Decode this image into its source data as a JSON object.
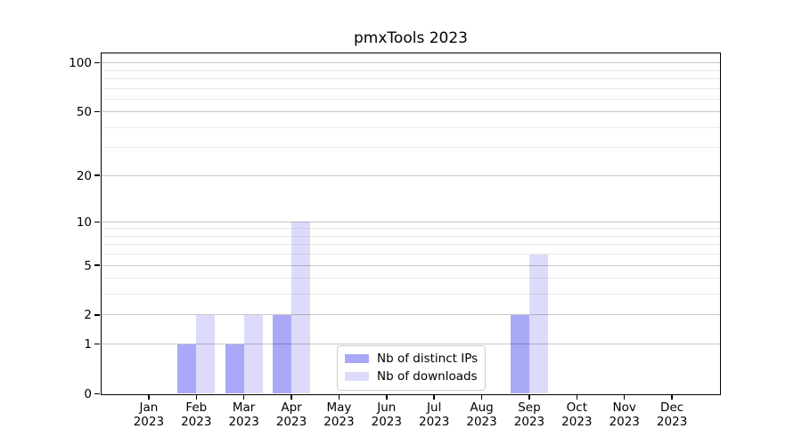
{
  "chart_data": {
    "type": "bar",
    "title": "pmxTools 2023",
    "x_categories": [
      "Jan",
      "Feb",
      "Mar",
      "Apr",
      "May",
      "Jun",
      "Jul",
      "Aug",
      "Sep",
      "Oct",
      "Nov",
      "Dec"
    ],
    "x_year_label": "2023",
    "series": [
      {
        "name": "Nb of distinct IPs",
        "color": "#a9a9f8",
        "values": [
          0,
          1,
          1,
          2,
          0,
          0,
          0,
          0,
          2,
          0,
          0,
          0
        ]
      },
      {
        "name": "Nb of downloads",
        "color": "#dcdcfa",
        "values": [
          0,
          2,
          2,
          10,
          0,
          0,
          0,
          0,
          6,
          0,
          0,
          0
        ]
      }
    ],
    "y_axis": {
      "scale": "log1p",
      "tick_values": [
        0,
        1,
        2,
        5,
        10,
        20,
        50,
        100
      ],
      "tick_labels": [
        "0",
        "1",
        "2",
        "5",
        "10",
        "20",
        "50",
        "100"
      ],
      "minor_gridline_values": [
        3,
        4,
        6,
        7,
        8,
        9,
        30,
        40,
        60,
        70,
        80,
        90
      ],
      "range_max": 115
    },
    "grid": true,
    "legend_position": "lower center-left inside plot",
    "colors": {
      "major_grid": "#c8c8c8",
      "minor_grid": "#ececec",
      "axis": "#000000",
      "background": "#ffffff"
    }
  }
}
